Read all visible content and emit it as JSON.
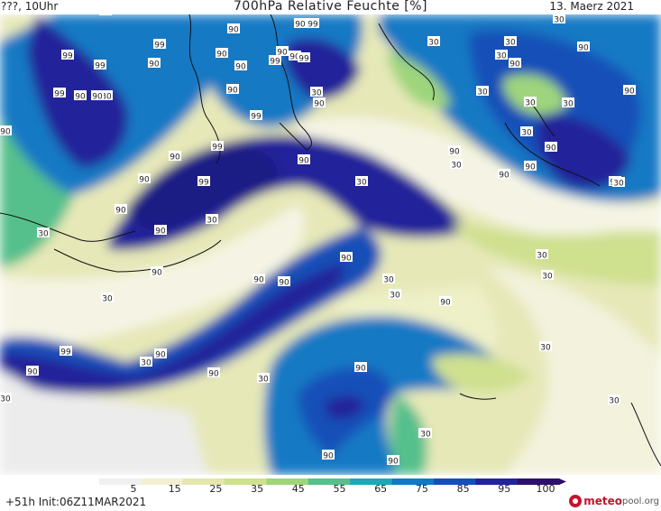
{
  "header": {
    "left": "???, 10Uhr",
    "title": "700hPa Relative Feuchte [%]",
    "right": "13. Maerz 2021"
  },
  "footer": {
    "run_info": "+51h Init:06Z11MAR2021",
    "brand_a": "meteo",
    "brand_b": "pool.org"
  },
  "legend": {
    "tick_labels": [
      "5",
      "15",
      "25",
      "35",
      "45",
      "55",
      "65",
      "75",
      "85",
      "95",
      "100"
    ],
    "colors": [
      "#f0f0f0",
      "#f2f0d0",
      "#e4e6ac",
      "#cfe08f",
      "#9ed57b",
      "#55c08c",
      "#1fa7b8",
      "#1279c4",
      "#1450b8",
      "#24249a",
      "#2d0f6e"
    ]
  },
  "map_labels": {
    "contours": [
      "90",
      "99",
      "90",
      "90",
      "99",
      "99",
      "99",
      "90",
      "90",
      "90",
      "99",
      "90",
      "99",
      "90",
      "99",
      "90",
      "30",
      "90",
      "30",
      "90",
      "99",
      "99",
      "90",
      "90",
      "99",
      "90",
      "30",
      "90",
      "90",
      "30",
      "30",
      "30",
      "90",
      "90",
      "90",
      "90",
      "30",
      "30",
      "99",
      "90",
      "90",
      "30",
      "90",
      "30",
      "90",
      "90",
      "30",
      "30",
      "90",
      "90",
      "30",
      "99",
      "90",
      "30",
      "90",
      "30",
      "30",
      "30",
      "90",
      "30",
      "30",
      "30",
      "90",
      "30",
      "30",
      "30",
      "30",
      "30",
      "90",
      "90",
      "90",
      "30",
      "90",
      "90",
      "90",
      "90"
    ]
  }
}
